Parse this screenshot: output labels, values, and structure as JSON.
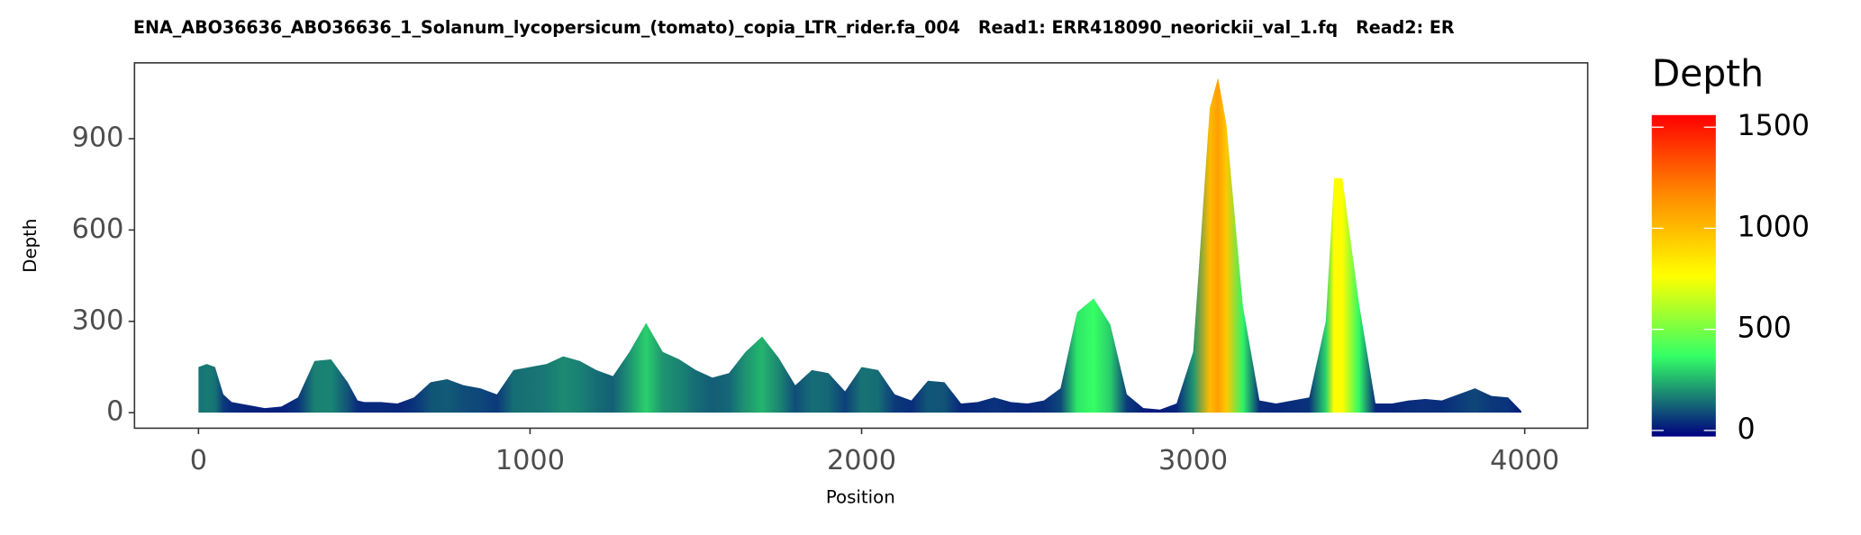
{
  "chart_data": {
    "type": "area",
    "title": "ENA_ABO36636_ABO36636_1_Solanum_lycopersicum_(tomato)_copia_LTR_rider.fa_004   Read1: ERR418090_neorickii_val_1.fq   Read2: ER",
    "x_label": "Position",
    "y_label": "Depth",
    "legend_title": "Depth",
    "x": [
      0,
      25,
      50,
      75,
      100,
      150,
      200,
      250,
      300,
      350,
      400,
      450,
      480,
      500,
      550,
      600,
      650,
      700,
      750,
      800,
      850,
      900,
      950,
      1000,
      1050,
      1100,
      1150,
      1200,
      1250,
      1300,
      1350,
      1400,
      1450,
      1500,
      1550,
      1600,
      1650,
      1700,
      1750,
      1800,
      1850,
      1900,
      1950,
      2000,
      2050,
      2100,
      2150,
      2200,
      2250,
      2300,
      2350,
      2400,
      2450,
      2500,
      2550,
      2600,
      2650,
      2700,
      2750,
      2800,
      2850,
      2900,
      2950,
      3000,
      3050,
      3075,
      3100,
      3150,
      3200,
      3250,
      3300,
      3350,
      3400,
      3425,
      3450,
      3500,
      3550,
      3600,
      3650,
      3700,
      3750,
      3800,
      3850,
      3900,
      3950,
      3990
    ],
    "values": [
      150,
      160,
      150,
      60,
      35,
      25,
      15,
      20,
      50,
      170,
      175,
      100,
      40,
      35,
      35,
      30,
      50,
      100,
      110,
      90,
      80,
      60,
      140,
      150,
      160,
      185,
      170,
      140,
      120,
      200,
      295,
      200,
      175,
      140,
      115,
      130,
      200,
      250,
      180,
      90,
      140,
      130,
      70,
      150,
      140,
      60,
      40,
      105,
      100,
      30,
      35,
      50,
      35,
      30,
      40,
      80,
      330,
      375,
      290,
      60,
      15,
      10,
      30,
      200,
      1000,
      1100,
      950,
      350,
      40,
      30,
      40,
      50,
      300,
      770,
      770,
      360,
      30,
      30,
      40,
      45,
      40,
      60,
      80,
      55,
      50,
      5
    ],
    "xlim": [
      -193,
      4190
    ],
    "ylim": [
      -51,
      1149
    ],
    "xticks": [
      0,
      1000,
      2000,
      3000,
      4000
    ],
    "yticks": [
      0,
      300,
      600,
      900
    ],
    "colorbar_lim": [
      -30,
      1560
    ],
    "colorbar_ticks": [
      0,
      500,
      1000,
      1500
    ],
    "colors": [
      "#000080",
      "#33ff66",
      "#ffff00",
      "#ff8c00",
      "#ff0000"
    ],
    "grid": false
  }
}
